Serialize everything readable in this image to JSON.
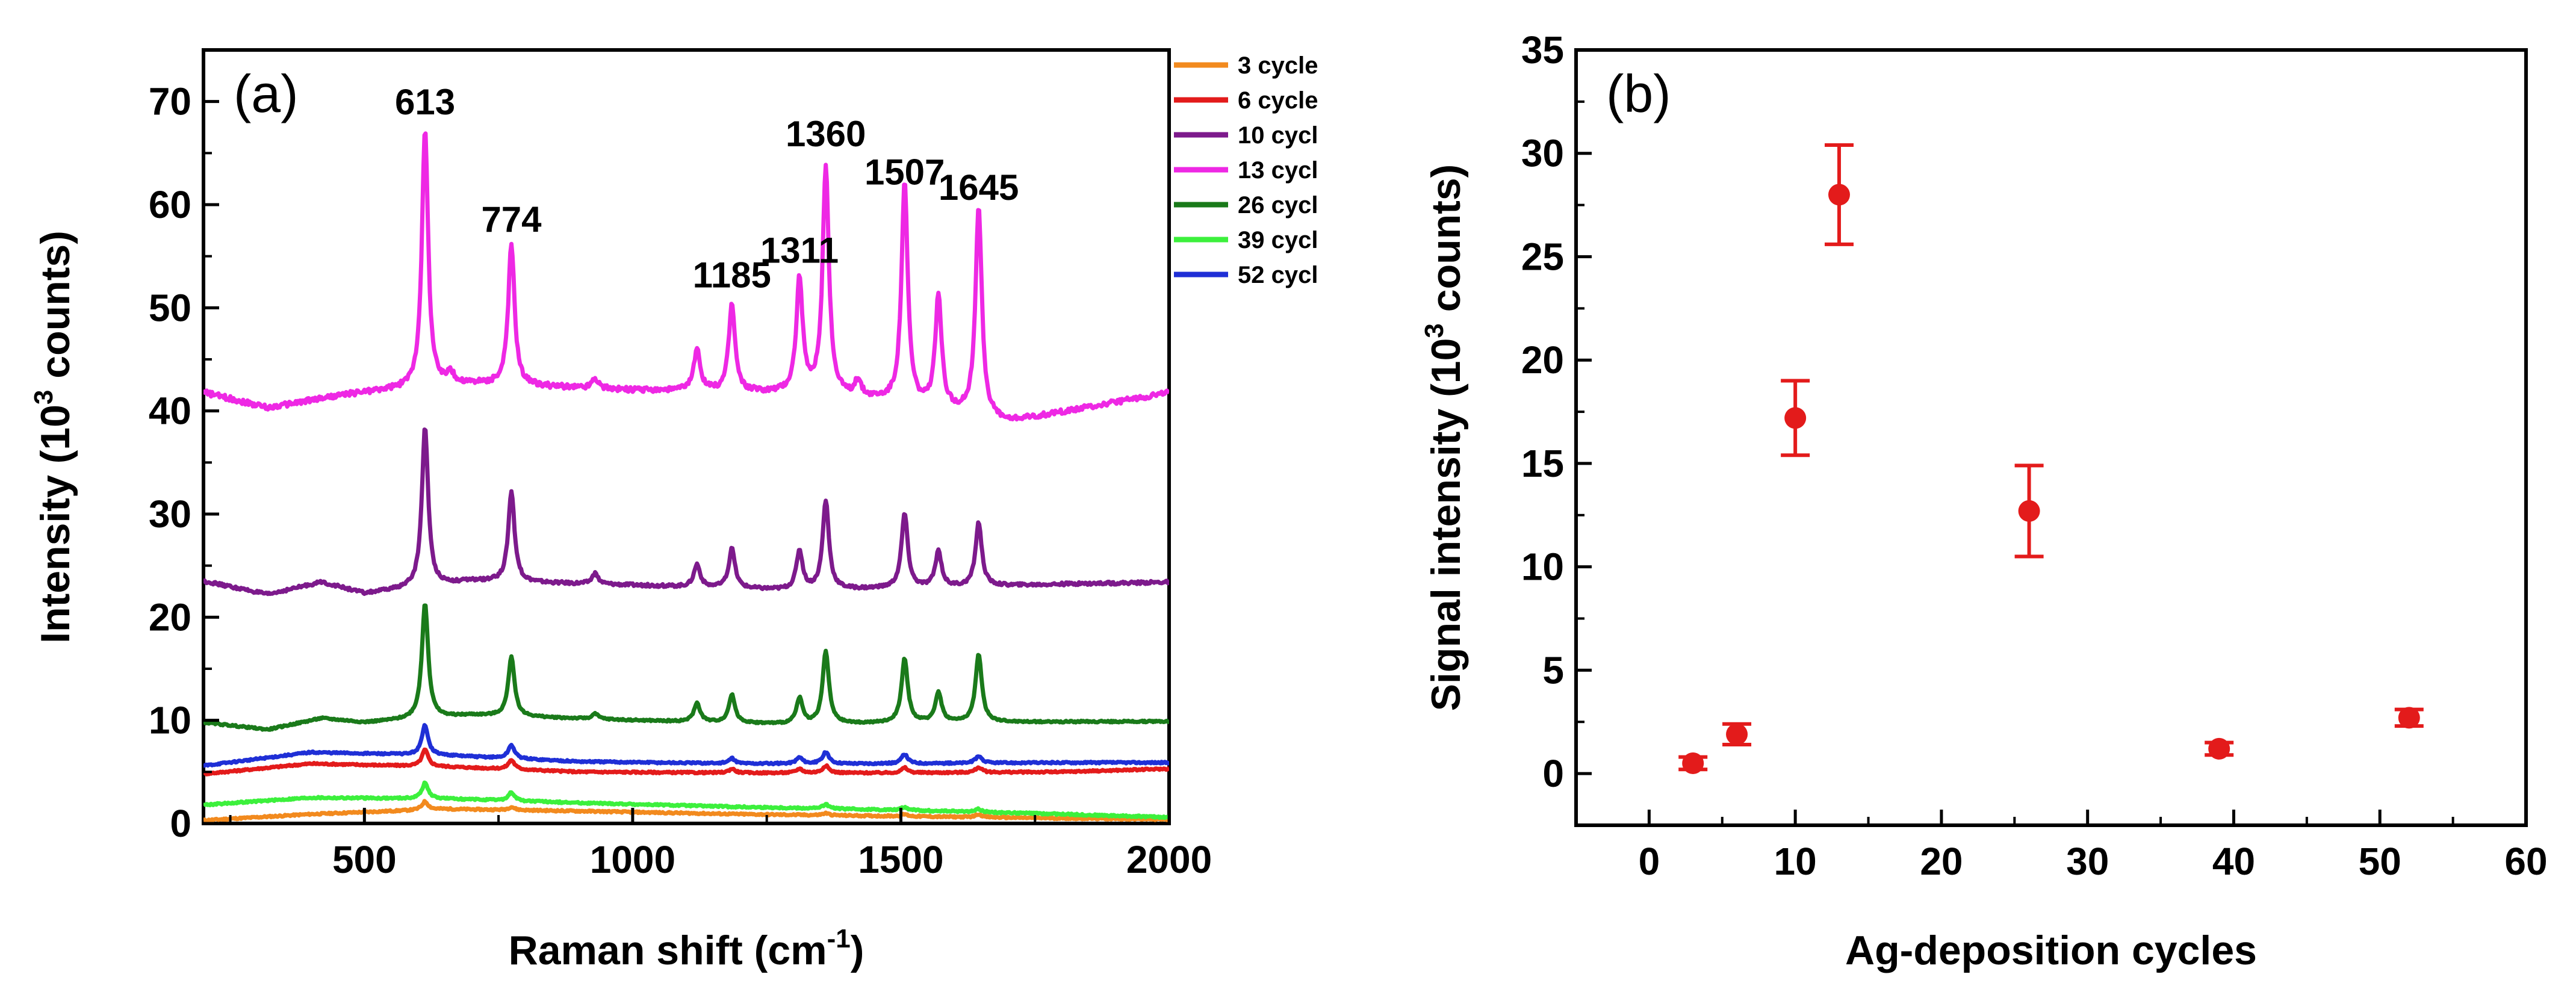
{
  "chart_data": [
    {
      "panel": "(a)",
      "type": "line",
      "xlabel": "Raman shift (cm",
      "xlabel_sup": "-1",
      "xlabel_end": ")",
      "ylabel": "Intensity (10",
      "ylabel_sup": "3",
      "ylabel_end": " counts)",
      "xlim": [
        200,
        2000
      ],
      "ylim": [
        0,
        75
      ],
      "xticks": [
        500,
        1000,
        1500,
        2000
      ],
      "yticks": [
        0,
        10,
        20,
        30,
        40,
        50,
        60,
        70
      ],
      "peak_labels": [
        {
          "text": "613",
          "x": 613,
          "y": 67.6
        },
        {
          "text": "774",
          "x": 774,
          "y": 56.2
        },
        {
          "text": "1185",
          "x": 1185,
          "y": 50.8
        },
        {
          "text": "1311",
          "x": 1311,
          "y": 53.2
        },
        {
          "text": "1360",
          "x": 1360,
          "y": 64.5
        },
        {
          "text": "1507",
          "x": 1507,
          "y": 60.8
        },
        {
          "text": "1645",
          "x": 1645,
          "y": 59.3
        }
      ],
      "series": [
        {
          "name": "3 cycle",
          "color": "#f28a1e",
          "baseline": [
            [
              200,
              0.3
            ],
            [
              400,
              0.9
            ],
            [
              650,
              1.4
            ],
            [
              900,
              1.2
            ],
            [
              1200,
              0.9
            ],
            [
              1500,
              0.7
            ],
            [
              1800,
              0.5
            ],
            [
              2000,
              0.4
            ]
          ],
          "peaks": [
            [
              613,
              0.8
            ],
            [
              774,
              0.3
            ],
            [
              1360,
              0.2
            ],
            [
              1507,
              0.2
            ],
            [
              1645,
              0.3
            ]
          ]
        },
        {
          "name": "6 cycle",
          "color": "#e31b1b",
          "baseline": [
            [
              200,
              4.8
            ],
            [
              400,
              5.8
            ],
            [
              650,
              5.5
            ],
            [
              900,
              5.0
            ],
            [
              1200,
              4.9
            ],
            [
              1500,
              4.9
            ],
            [
              1800,
              5.0
            ],
            [
              2000,
              5.3
            ]
          ],
          "peaks": [
            [
              613,
              1.6
            ],
            [
              774,
              0.9
            ],
            [
              1185,
              0.4
            ],
            [
              1311,
              0.4
            ],
            [
              1360,
              0.7
            ],
            [
              1507,
              0.5
            ],
            [
              1645,
              0.5
            ]
          ]
        },
        {
          "name": "10 cycl",
          "color": "#7d1a8c",
          "baseline": [
            [
              200,
              23.5
            ],
            [
              320,
              22.2
            ],
            [
              420,
              23.4
            ],
            [
              500,
              22.3
            ],
            [
              700,
              23.5
            ],
            [
              1000,
              23.1
            ],
            [
              1300,
              22.6
            ],
            [
              1600,
              22.9
            ],
            [
              1800,
              23.2
            ],
            [
              2000,
              23.4
            ]
          ],
          "peaks": [
            [
              613,
              15.5
            ],
            [
              774,
              8.8
            ],
            [
              930,
              1.0
            ],
            [
              1120,
              2.2
            ],
            [
              1185,
              3.8
            ],
            [
              1311,
              3.8
            ],
            [
              1360,
              8.6
            ],
            [
              1507,
              7.2
            ],
            [
              1570,
              3.5
            ],
            [
              1645,
              6.2
            ]
          ]
        },
        {
          "name": "13 cycl",
          "color": "#ee28e4",
          "baseline": [
            [
              200,
              41.8
            ],
            [
              320,
              40.3
            ],
            [
              420,
              41.2
            ],
            [
              500,
              41.8
            ],
            [
              700,
              42.6
            ],
            [
              1000,
              42.0
            ],
            [
              1300,
              41.7
            ],
            [
              1450,
              41.1
            ],
            [
              1600,
              39.9
            ],
            [
              1700,
              38.9
            ],
            [
              2000,
              41.8
            ]
          ],
          "peaks": [
            [
              613,
              25.0
            ],
            [
              660,
              1.2
            ],
            [
              774,
              13.7
            ],
            [
              930,
              1.0
            ],
            [
              1120,
              4.2
            ],
            [
              1185,
              8.5
            ],
            [
              1311,
              11.1
            ],
            [
              1360,
              22.1
            ],
            [
              1420,
              1.5
            ],
            [
              1507,
              21.3
            ],
            [
              1570,
              10.8
            ],
            [
              1645,
              20.4
            ]
          ]
        },
        {
          "name": "26 cycl",
          "color": "#1a7a1a",
          "baseline": [
            [
              200,
              9.8
            ],
            [
              320,
              9.1
            ],
            [
              420,
              10.2
            ],
            [
              500,
              9.8
            ],
            [
              700,
              10.5
            ],
            [
              1000,
              10.0
            ],
            [
              1300,
              9.6
            ],
            [
              1600,
              9.8
            ],
            [
              2000,
              9.9
            ]
          ],
          "peaks": [
            [
              613,
              11.2
            ],
            [
              774,
              5.8
            ],
            [
              930,
              0.5
            ],
            [
              1120,
              1.8
            ],
            [
              1185,
              2.7
            ],
            [
              1311,
              2.5
            ],
            [
              1360,
              7.0
            ],
            [
              1507,
              6.2
            ],
            [
              1570,
              2.9
            ],
            [
              1645,
              6.6
            ]
          ]
        },
        {
          "name": "39 cycl",
          "color": "#3cf03c",
          "baseline": [
            [
              200,
              1.8
            ],
            [
              400,
              2.5
            ],
            [
              650,
              2.4
            ],
            [
              900,
              2.0
            ],
            [
              1200,
              1.6
            ],
            [
              1500,
              1.3
            ],
            [
              1800,
              0.9
            ],
            [
              2000,
              0.6
            ]
          ],
          "peaks": [
            [
              613,
              1.5
            ],
            [
              774,
              0.8
            ],
            [
              1360,
              0.4
            ],
            [
              1507,
              0.3
            ],
            [
              1645,
              0.3
            ]
          ]
        },
        {
          "name": "52 cycl",
          "color": "#1f2fd6",
          "baseline": [
            [
              200,
              5.6
            ],
            [
              400,
              6.9
            ],
            [
              650,
              6.6
            ],
            [
              900,
              6.0
            ],
            [
              1200,
              5.8
            ],
            [
              1500,
              5.8
            ],
            [
              1800,
              5.9
            ],
            [
              2000,
              5.9
            ]
          ],
          "peaks": [
            [
              613,
              2.9
            ],
            [
              774,
              1.3
            ],
            [
              1185,
              0.5
            ],
            [
              1311,
              0.6
            ],
            [
              1360,
              1.1
            ],
            [
              1507,
              0.9
            ],
            [
              1645,
              0.7
            ]
          ]
        }
      ]
    },
    {
      "panel": "(b)",
      "type": "scatter",
      "xlabel": "Ag-deposition cycles",
      "ylabel": "Signal intensity (10",
      "ylabel_sup": "3",
      "ylabel_end": " counts)",
      "xlim": [
        -5,
        60
      ],
      "ylim": [
        -2.5,
        35
      ],
      "xticks": [
        0,
        10,
        20,
        30,
        40,
        50,
        60
      ],
      "yticks": [
        0,
        5,
        10,
        15,
        20,
        25,
        30,
        35
      ],
      "color": "#e31b1b",
      "points": [
        {
          "x": 3,
          "y": 0.5,
          "err": 0.3
        },
        {
          "x": 6,
          "y": 1.9,
          "err": 0.5
        },
        {
          "x": 10,
          "y": 17.2,
          "err": 1.8
        },
        {
          "x": 13,
          "y": 28.0,
          "err": 2.4
        },
        {
          "x": 26,
          "y": 12.7,
          "err": 2.2
        },
        {
          "x": 39,
          "y": 1.2,
          "err": 0.3
        },
        {
          "x": 52,
          "y": 2.7,
          "err": 0.4
        }
      ]
    }
  ]
}
